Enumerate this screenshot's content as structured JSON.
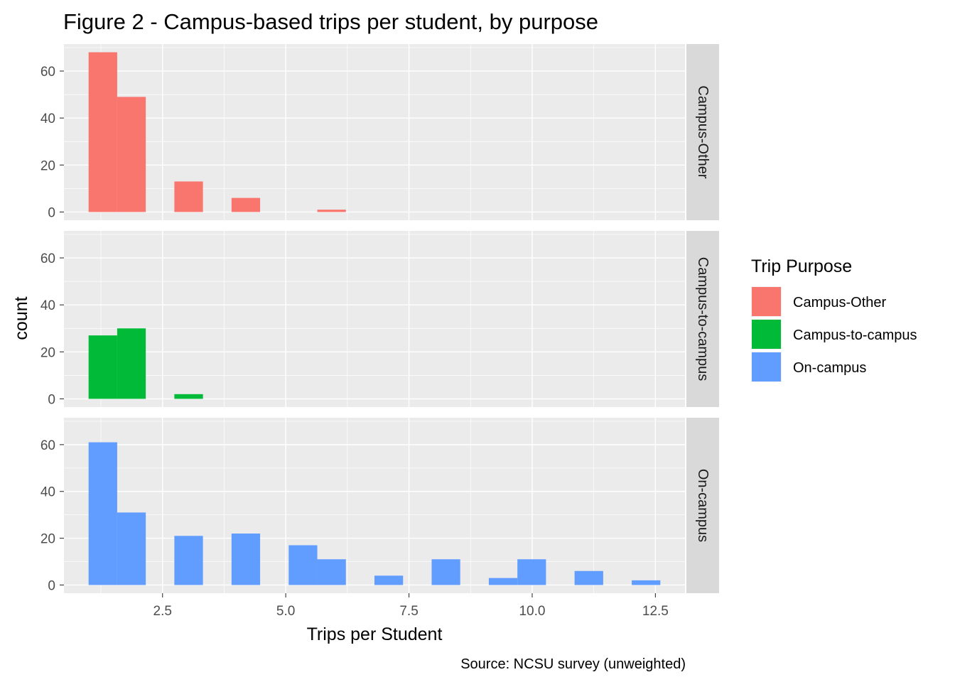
{
  "chart_data": {
    "type": "bar",
    "title": "Figure 2 - Campus-based trips per student, by purpose",
    "xlabel": "Trips per Student",
    "ylabel": "count",
    "caption": "Source: NCSU survey (unweighted)",
    "legend_title": "Trip Purpose",
    "legend_position": "right",
    "xlim": [
      0.5,
      13.1
    ],
    "ylim": [
      -3.5,
      71.5
    ],
    "x_ticks": [
      2.5,
      5.0,
      7.5,
      10.0,
      12.5
    ],
    "x_tick_labels": [
      "2.5",
      "5.0",
      "7.5",
      "10.0",
      "12.5"
    ],
    "y_ticks": [
      0,
      20,
      40,
      60
    ],
    "y_tick_labels": [
      "0",
      "20",
      "40",
      "60"
    ],
    "bin_width": 0.58,
    "grid": true,
    "series": [
      {
        "name": "Campus-Other",
        "color": "#F8766D",
        "bins": [
          {
            "x0": 1.0,
            "count": 68
          },
          {
            "x0": 1.58,
            "count": 49
          },
          {
            "x0": 2.74,
            "count": 13
          },
          {
            "x0": 3.9,
            "count": 6
          },
          {
            "x0": 5.64,
            "count": 1
          }
        ]
      },
      {
        "name": "Campus-to-campus",
        "color": "#00BA38",
        "bins": [
          {
            "x0": 1.0,
            "count": 27
          },
          {
            "x0": 1.58,
            "count": 30
          },
          {
            "x0": 2.74,
            "count": 2
          }
        ]
      },
      {
        "name": "On-campus",
        "color": "#619CFF",
        "bins": [
          {
            "x0": 1.0,
            "count": 61
          },
          {
            "x0": 1.58,
            "count": 31
          },
          {
            "x0": 2.74,
            "count": 21
          },
          {
            "x0": 3.9,
            "count": 22
          },
          {
            "x0": 5.06,
            "count": 17
          },
          {
            "x0": 5.64,
            "count": 11
          },
          {
            "x0": 6.8,
            "count": 4
          },
          {
            "x0": 7.96,
            "count": 11
          },
          {
            "x0": 9.12,
            "count": 3
          },
          {
            "x0": 9.7,
            "count": 11
          },
          {
            "x0": 10.86,
            "count": 6
          },
          {
            "x0": 12.02,
            "count": 2
          }
        ]
      }
    ]
  }
}
